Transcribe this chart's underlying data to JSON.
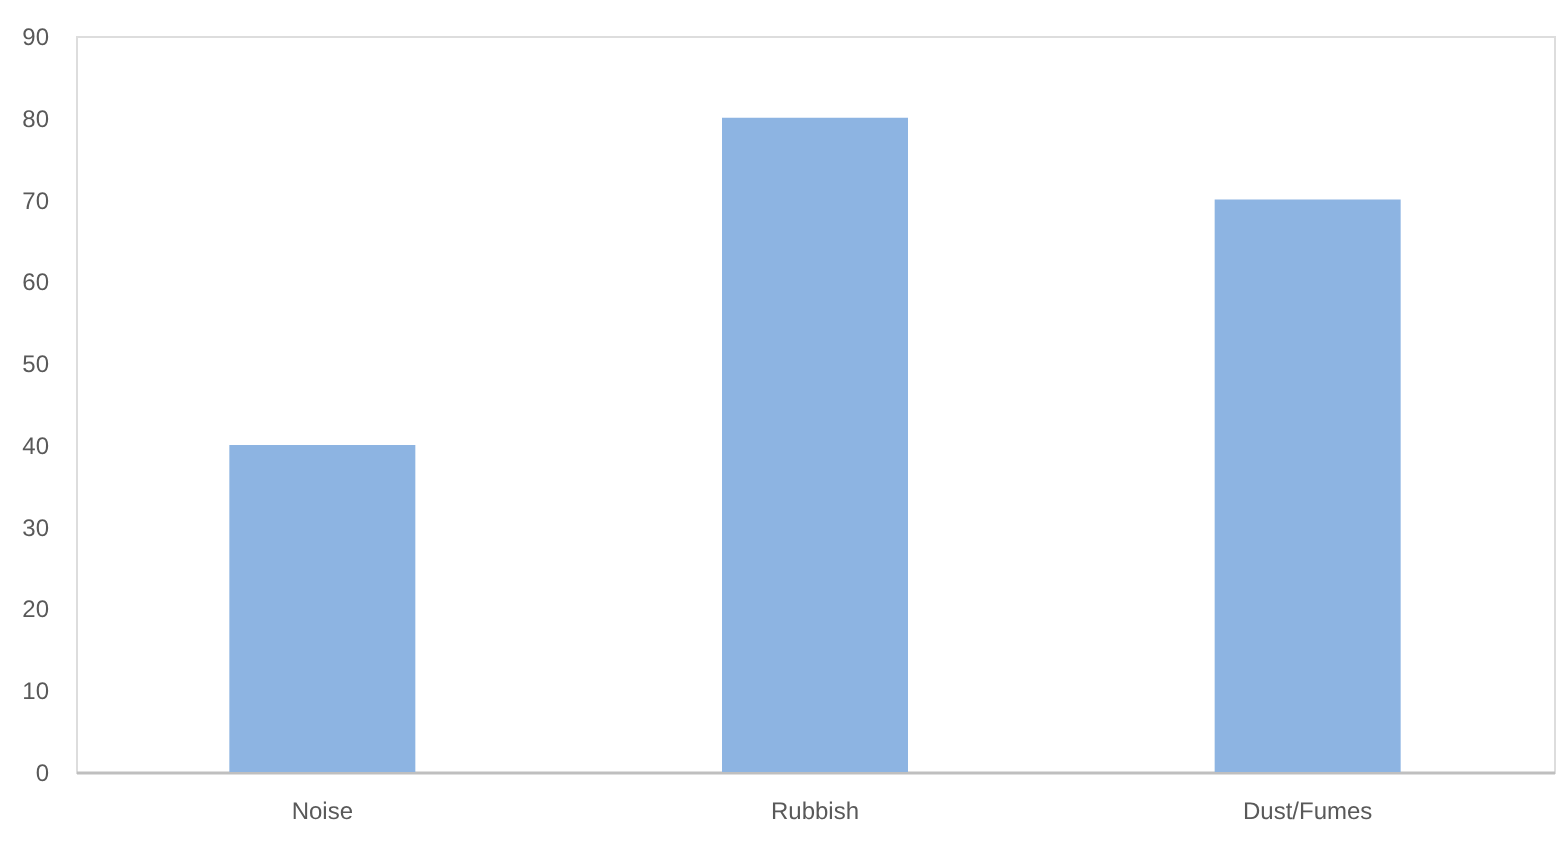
{
  "chart_data": {
    "type": "bar",
    "categories": [
      "Noise",
      "Rubbish",
      "Dust/Fumes"
    ],
    "values": [
      40,
      80,
      70
    ],
    "color": "#8db4e2",
    "ylim": [
      0,
      90
    ],
    "yticks": [
      0,
      10,
      20,
      30,
      40,
      50,
      60,
      70,
      80,
      90
    ],
    "grid": false
  }
}
